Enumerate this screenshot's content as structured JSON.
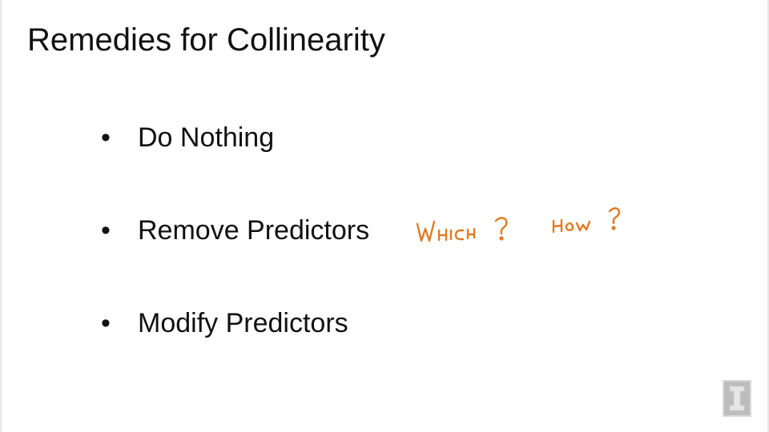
{
  "slide": {
    "title": "Remedies for Collinearity",
    "bullet_symbol": "•",
    "bullets": [
      {
        "text": "Do Nothing"
      },
      {
        "text": "Remove Predictors"
      },
      {
        "text": "Modify Predictors"
      }
    ]
  },
  "annotation": {
    "color": "#e07b24",
    "handwritten": [
      "WHICH ?",
      "HOW ?"
    ]
  },
  "logo": {
    "icon": "block-i-logo-icon",
    "color": "#bdbdbd"
  }
}
